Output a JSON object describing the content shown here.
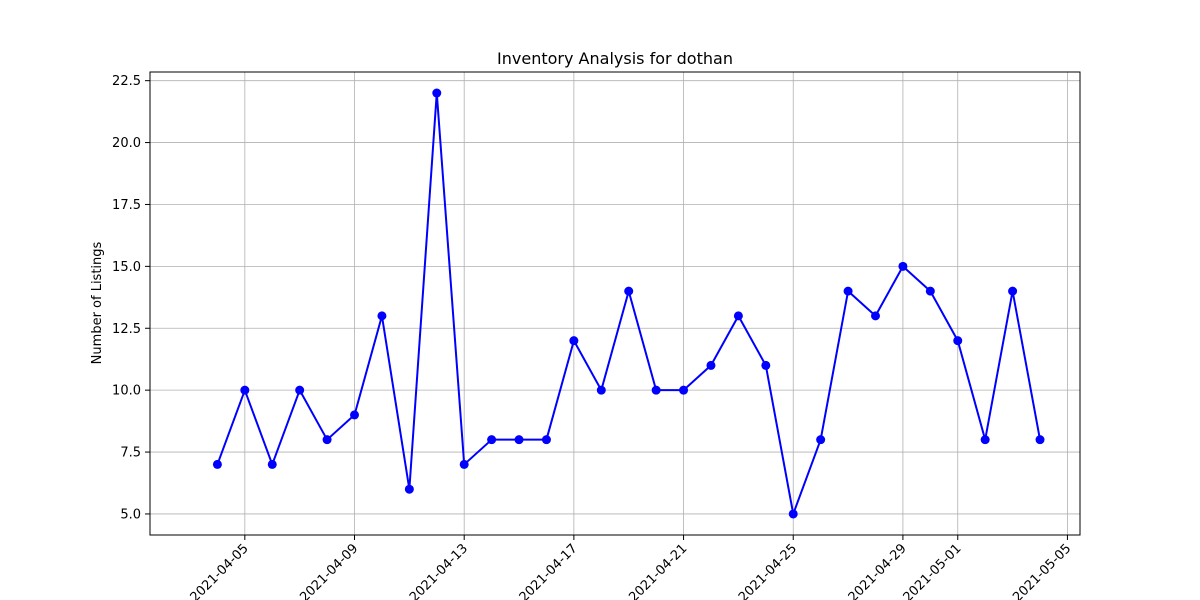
{
  "chart_data": {
    "type": "line",
    "title": "Inventory Analysis for dothan",
    "xlabel": "",
    "ylabel": "Number of Listings",
    "x_tick_labels": [
      "2021-04-05",
      "2021-04-09",
      "2021-04-13",
      "2021-04-17",
      "2021-04-21",
      "2021-04-25",
      "2021-04-29",
      "2021-05-01",
      "2021-05-05"
    ],
    "y_tick_labels": [
      "5.0",
      "7.5",
      "10.0",
      "12.5",
      "15.0",
      "17.5",
      "20.0",
      "22.5"
    ],
    "xlim": [
      "2021-04-01 13:00",
      "2021-05-05 11:00"
    ],
    "ylim": [
      4.15,
      22.85
    ],
    "grid": true,
    "series": [
      {
        "color": "#0000ff",
        "marker": "circle",
        "x": [
          "2021-04-04",
          "2021-04-05",
          "2021-04-06",
          "2021-04-07",
          "2021-04-08",
          "2021-04-09",
          "2021-04-10",
          "2021-04-11",
          "2021-04-12",
          "2021-04-13",
          "2021-04-14",
          "2021-04-15",
          "2021-04-16",
          "2021-04-17",
          "2021-04-18",
          "2021-04-19",
          "2021-04-20",
          "2021-04-21",
          "2021-04-22",
          "2021-04-23",
          "2021-04-24",
          "2021-04-25",
          "2021-04-26",
          "2021-04-27",
          "2021-04-28",
          "2021-04-29",
          "2021-04-30",
          "2021-05-01",
          "2021-05-02",
          "2021-05-03",
          "2021-05-04"
        ],
        "values": [
          7,
          10,
          7,
          10,
          8,
          9,
          13,
          6,
          22,
          7,
          8,
          8,
          8,
          12,
          10,
          14,
          10,
          10,
          11,
          13,
          11,
          5,
          8,
          14,
          13,
          15,
          14,
          12,
          8,
          14,
          8
        ]
      }
    ]
  }
}
